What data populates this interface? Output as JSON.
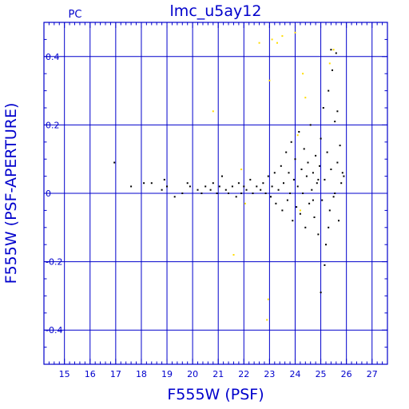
{
  "chart_data": {
    "type": "scatter",
    "title": "lmc_u5ay12",
    "corner_label": "PC",
    "xlabel": "F555W (PSF)",
    "ylabel": "F555W (PSF-APERTURE)",
    "xlim": [
      14.2,
      27.6
    ],
    "ylim": [
      -0.5,
      0.5
    ],
    "xticks": [
      15,
      16,
      17,
      18,
      19,
      20,
      21,
      22,
      23,
      24,
      25,
      26,
      27
    ],
    "xtick_labels": [
      "15",
      "16",
      "17",
      "18",
      "19",
      "20",
      "21",
      "22",
      "23",
      "24",
      "25",
      "26",
      "27"
    ],
    "yticks": [
      -0.4,
      -0.2,
      0,
      0.2,
      0.4
    ],
    "ytick_labels": [
      "-0.4",
      "-0.2",
      "0",
      "0.2",
      "0.4"
    ],
    "grid": true,
    "colors": {
      "axes": "#0000cc",
      "grid": "#0000cc",
      "main": "#000000",
      "outlier": "#ffdd00"
    },
    "series": [
      {
        "color": "#000000",
        "points": [
          [
            16.95,
            0.09
          ],
          [
            17.6,
            0.02
          ],
          [
            18.1,
            0.03
          ],
          [
            18.4,
            0.03
          ],
          [
            18.8,
            0.01
          ],
          [
            18.9,
            0.04
          ],
          [
            19.0,
            0.02
          ],
          [
            19.3,
            -0.01
          ],
          [
            19.6,
            0.0
          ],
          [
            19.8,
            0.03
          ],
          [
            19.9,
            0.02
          ],
          [
            20.2,
            0.01
          ],
          [
            20.35,
            0.0
          ],
          [
            20.5,
            0.02
          ],
          [
            20.7,
            0.01
          ],
          [
            20.8,
            0.03
          ],
          [
            20.95,
            0.0
          ],
          [
            21.05,
            0.02
          ],
          [
            21.15,
            0.05
          ],
          [
            21.3,
            0.01
          ],
          [
            21.4,
            0.0
          ],
          [
            21.55,
            0.02
          ],
          [
            21.7,
            -0.01
          ],
          [
            21.8,
            0.03
          ],
          [
            21.9,
            0.0
          ],
          [
            22.0,
            0.02
          ],
          [
            22.1,
            0.01
          ],
          [
            22.25,
            0.04
          ],
          [
            22.35,
            0.0
          ],
          [
            22.5,
            0.02
          ],
          [
            22.65,
            0.01
          ],
          [
            22.75,
            0.03
          ],
          [
            22.85,
            0.0
          ],
          [
            22.95,
            0.05
          ],
          [
            23.05,
            -0.01
          ],
          [
            23.1,
            0.02
          ],
          [
            23.2,
            0.06
          ],
          [
            23.25,
            -0.03
          ],
          [
            23.35,
            0.01
          ],
          [
            23.45,
            0.08
          ],
          [
            23.5,
            -0.05
          ],
          [
            23.55,
            0.03
          ],
          [
            23.65,
            0.12
          ],
          [
            23.7,
            -0.02
          ],
          [
            23.75,
            0.06
          ],
          [
            23.8,
            0.0
          ],
          [
            23.85,
            0.15
          ],
          [
            23.9,
            -0.08
          ],
          [
            23.95,
            0.04
          ],
          [
            24.0,
            0.1
          ],
          [
            24.05,
            -0.04
          ],
          [
            24.1,
            0.02
          ],
          [
            24.15,
            0.18
          ],
          [
            24.2,
            -0.06
          ],
          [
            24.25,
            0.07
          ],
          [
            24.3,
            0.0
          ],
          [
            24.35,
            0.13
          ],
          [
            24.4,
            -0.1
          ],
          [
            24.45,
            0.05
          ],
          [
            24.5,
            0.09
          ],
          [
            24.55,
            -0.03
          ],
          [
            24.6,
            0.2
          ],
          [
            24.65,
            0.01
          ],
          [
            24.7,
            0.06
          ],
          [
            24.75,
            -0.07
          ],
          [
            24.8,
            0.11
          ],
          [
            24.85,
            0.03
          ],
          [
            24.9,
            -0.12
          ],
          [
            24.95,
            0.08
          ],
          [
            25.0,
            0.16
          ],
          [
            25.05,
            -0.02
          ],
          [
            25.1,
            0.25
          ],
          [
            25.15,
            0.04
          ],
          [
            25.2,
            -0.15
          ],
          [
            25.25,
            0.12
          ],
          [
            25.3,
            0.3
          ],
          [
            25.35,
            -0.05
          ],
          [
            25.4,
            0.07
          ],
          [
            25.45,
            0.36
          ],
          [
            25.5,
            -0.01
          ],
          [
            25.55,
            0.21
          ],
          [
            25.6,
            0.41
          ],
          [
            25.65,
            0.09
          ],
          [
            25.7,
            -0.08
          ],
          [
            25.75,
            0.14
          ],
          [
            25.8,
            0.03
          ],
          [
            25.85,
            0.06
          ],
          [
            25.9,
            0.05
          ],
          [
            25.0,
            -0.29
          ],
          [
            25.15,
            -0.21
          ],
          [
            25.4,
            0.42
          ],
          [
            25.3,
            -0.1
          ],
          [
            24.9,
            0.04
          ],
          [
            24.7,
            -0.02
          ],
          [
            25.55,
            0.0
          ],
          [
            25.65,
            0.24
          ]
        ]
      },
      {
        "color": "#ffdd00",
        "points": [
          [
            20.8,
            0.24
          ],
          [
            21.6,
            -0.18
          ],
          [
            22.6,
            0.44
          ],
          [
            22.9,
            -0.37
          ],
          [
            22.95,
            -0.31
          ],
          [
            23.1,
            0.45
          ],
          [
            23.3,
            0.44
          ],
          [
            23.5,
            0.46
          ],
          [
            24.0,
            0.47
          ],
          [
            24.3,
            0.35
          ],
          [
            24.4,
            0.28
          ],
          [
            24.1,
            0.17
          ],
          [
            24.2,
            -0.05
          ],
          [
            21.9,
            0.07
          ],
          [
            22.05,
            -0.03
          ],
          [
            23.0,
            0.33
          ],
          [
            25.35,
            0.38
          ],
          [
            25.5,
            0.42
          ]
        ]
      }
    ]
  }
}
